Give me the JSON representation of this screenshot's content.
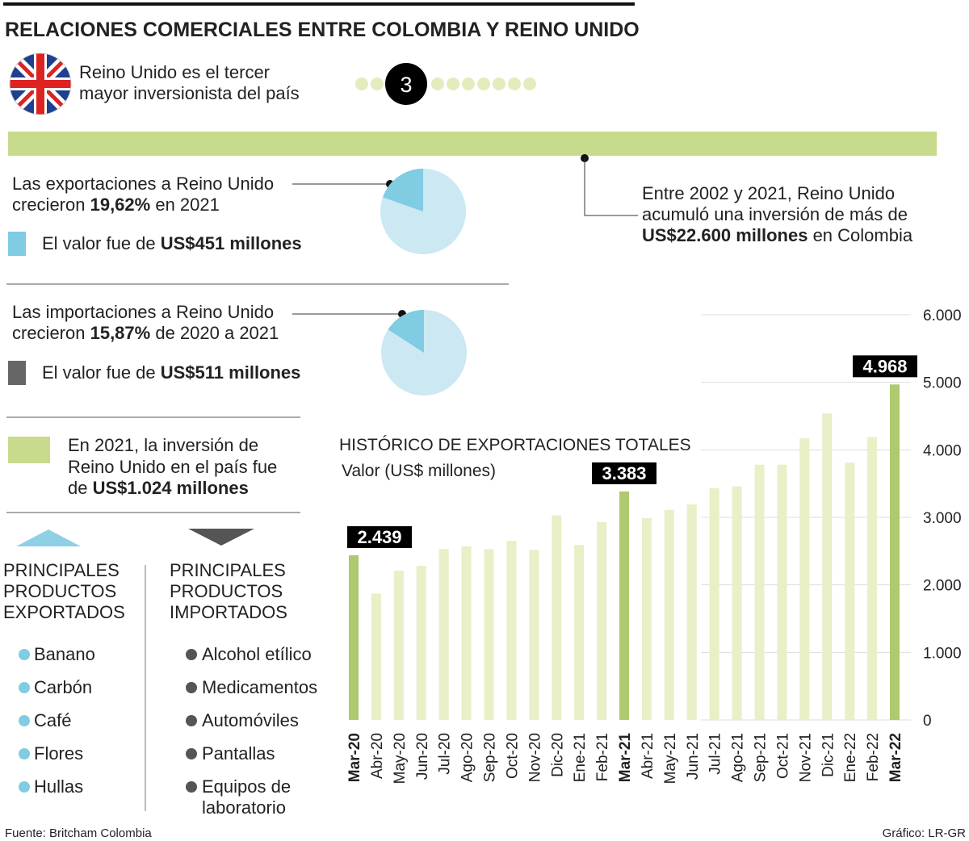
{
  "title": "RELACIONES COMERCIALES ENTRE COLOMBIA Y REINO UNIDO",
  "ranking": {
    "lines": [
      "Reino Unido es el tercer",
      "mayor inversionista del país"
    ],
    "rank": 3
  },
  "investment_total": {
    "lines": [
      "Entre 2002 y 2021, Reino Unido",
      "acumuló una inversión de más de",
      "US$22.600 millones",
      " en Colombia"
    ]
  },
  "exports": {
    "lines": [
      "Las exportaciones a Reino Unido",
      "crecieron ",
      " en 2021"
    ],
    "value_text": [
      "El valor fue de ",
      "US$451 millones"
    ]
  },
  "imports": {
    "lines": [
      "Las importaciones a Reino Unido",
      "crecieron ",
      " de 2020 a 2021"
    ],
    "value_text": [
      "El valor fue de ",
      "US$511 millones"
    ]
  },
  "investment_2021": {
    "lines": [
      "En 2021, la inversión de",
      "Reino Unido en el país fue",
      "de ",
      "US$1.024 millones"
    ]
  },
  "products": {
    "exported": {
      "heading": [
        "PRINCIPALES",
        "PRODUCTOS",
        "EXPORTADOS"
      ],
      "items": [
        "Banano",
        "Carbón",
        "Café",
        "Flores",
        "Hullas"
      ]
    },
    "imported": {
      "heading": [
        "PRINCIPALES",
        "PRODUCTOS",
        "IMPORTADOS"
      ],
      "items": [
        "Alcohol etílico",
        "Medicamentos",
        "Automóviles",
        "Pantallas",
        "Equipos de laboratorio"
      ]
    }
  },
  "footer": {
    "source": "Fuente: Britcham Colombia",
    "credit": "Gráfico: LR-GR"
  },
  "chart_data": [
    {
      "type": "pie",
      "values": [
        19.62
      ],
      "value_labels": [
        "19,62%"
      ],
      "color": "#7fcce3",
      "rest_color": "#cce8f2"
    },
    {
      "type": "pie",
      "values": [
        15.87
      ],
      "value_labels": [
        "15,87%"
      ],
      "color": "#7fcce3",
      "rest_color": "#cce8f2"
    },
    {
      "type": "bar",
      "title": "HISTÓRICO DE EXPORTACIONES TOTALES",
      "subtitle": "Valor (US$ millones)",
      "categories": [
        "Mar-20",
        "Abr-20",
        "May-20",
        "Jun-20",
        "Jul-20",
        "Ago-20",
        "Sep-20",
        "Oct-20",
        "Nov-20",
        "Dic-20",
        "Ene-21",
        "Feb-21",
        "Mar-21",
        "Abr-21",
        "May-21",
        "Jun-21",
        "Jul-21",
        "Ago-21",
        "Sep-21",
        "Oct-21",
        "Nov-21",
        "Dic-21",
        "Ene-22",
        "Feb-22",
        "Mar-22"
      ],
      "values": [
        2439,
        1870,
        2210,
        2280,
        2530,
        2570,
        2530,
        2650,
        2520,
        3030,
        2590,
        2930,
        3383,
        2990,
        3110,
        3190,
        3430,
        3460,
        3780,
        3780,
        4170,
        4540,
        3810,
        4190,
        4968
      ],
      "value_labels": [
        "2.439",
        null,
        null,
        null,
        null,
        null,
        null,
        null,
        null,
        null,
        null,
        null,
        "3.383",
        null,
        null,
        null,
        null,
        null,
        null,
        null,
        null,
        null,
        null,
        null,
        "4.968"
      ],
      "color": "#e9efc6",
      "highlight_color": "#afc96e",
      "ylim": [
        0,
        6000
      ],
      "yticks": [
        0,
        {
          "value": 1000,
          "label": "1.000"
        },
        {
          "value": 2000,
          "label": "2.000"
        },
        {
          "value": 3000,
          "label": "3.000"
        },
        {
          "value": 4000,
          "label": "4.000"
        },
        {
          "value": 5000,
          "label": "5.000"
        },
        {
          "value": 6000,
          "label": "6.000"
        }
      ],
      "grid": true
    }
  ]
}
